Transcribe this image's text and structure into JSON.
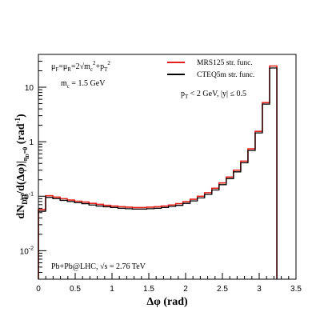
{
  "chart_data": {
    "type": "line",
    "title": "",
    "xlabel": "Δφ (rad)",
    "ylabel": "dN_DD/d(Δφ)|_{η_D=0} (rad^-1)",
    "xlim": [
      0,
      3.5
    ],
    "ylim": [
      0.003,
      40
    ],
    "yscale": "log",
    "grid": false,
    "legend_position": "top-right",
    "x_ticks": [
      "0",
      "0.5",
      "1",
      "1.5",
      "2",
      "2.5",
      "3",
      "3.5"
    ],
    "y_ticks": [
      "10^-2",
      "10^-1",
      "1",
      "10"
    ],
    "bin_edges": [
      0,
      0.0982,
      0.1963,
      0.2945,
      0.3927,
      0.4909,
      0.589,
      0.6872,
      0.7854,
      0.8836,
      0.9817,
      1.0799,
      1.1781,
      1.2763,
      1.3744,
      1.4726,
      1.5708,
      1.669,
      1.7671,
      1.8653,
      1.9635,
      2.0617,
      2.1598,
      2.258,
      2.3562,
      2.4544,
      2.5525,
      2.6507,
      2.7489,
      2.8471,
      2.9452,
      3.0434,
      3.1416,
      3.2398
    ],
    "series": [
      {
        "name": "MRS125 str. func.",
        "color": "#e8201c",
        "values": [
          0.057,
          0.102,
          0.096,
          0.09,
          0.085,
          0.081,
          0.078,
          0.074,
          0.071,
          0.068,
          0.066,
          0.064,
          0.063,
          0.062,
          0.062,
          0.063,
          0.064,
          0.066,
          0.069,
          0.073,
          0.079,
          0.088,
          0.1,
          0.116,
          0.14,
          0.175,
          0.225,
          0.3,
          0.44,
          0.74,
          1.55,
          5.2,
          24.5
        ]
      },
      {
        "name": "CTEQ5m str. func.",
        "color": "#000000",
        "values": [
          0.053,
          0.095,
          0.09,
          0.084,
          0.08,
          0.076,
          0.073,
          0.069,
          0.066,
          0.064,
          0.062,
          0.06,
          0.059,
          0.058,
          0.058,
          0.059,
          0.06,
          0.062,
          0.065,
          0.068,
          0.074,
          0.082,
          0.093,
          0.108,
          0.13,
          0.163,
          0.21,
          0.28,
          0.41,
          0.69,
          1.45,
          4.9,
          22.5
        ]
      }
    ],
    "annotations": {
      "scale": "μ_F=μ_R=2√(m_c² + p_T²)",
      "mass": "m_c = 1.5 GeV",
      "cuts": "p_T < 2 GeV, |y| ≤ 0.5",
      "system": "Pb+Pb@LHC, √s = 2.76 TeV"
    }
  }
}
